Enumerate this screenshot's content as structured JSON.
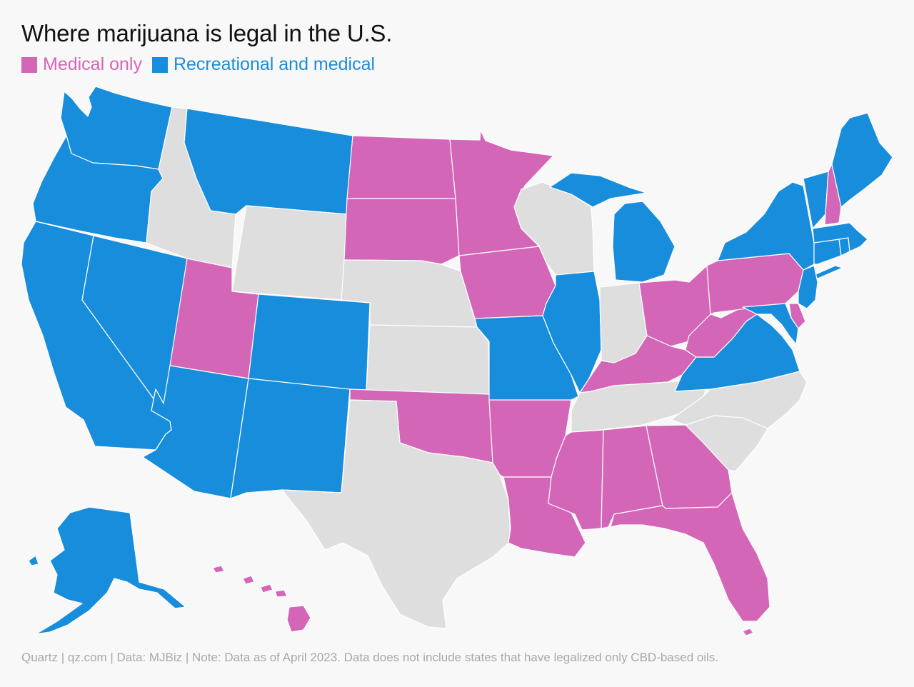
{
  "title": "Where marijuana is legal in the U.S.",
  "legend": [
    {
      "label": "Medical only",
      "status": "medical",
      "color": "#d466b8"
    },
    {
      "label": "Recreational and medical",
      "status": "recreational",
      "color": "#188ddc"
    }
  ],
  "colors": {
    "medical": "#d466b8",
    "recreational": "#188ddc",
    "none": "#dedede",
    "background": "#f8f8f8"
  },
  "states": {
    "WA": "recreational",
    "OR": "recreational",
    "CA": "recreational",
    "NV": "recreational",
    "ID": "none",
    "MT": "recreational",
    "WY": "none",
    "UT": "medical",
    "CO": "recreational",
    "AZ": "recreational",
    "NM": "recreational",
    "ND": "medical",
    "SD": "medical",
    "NE": "none",
    "KS": "none",
    "OK": "medical",
    "TX": "none",
    "MN": "medical",
    "IA": "medical",
    "MO": "recreational",
    "AR": "medical",
    "LA": "medical",
    "WI": "none",
    "IL": "recreational",
    "MI": "recreational",
    "IN": "none",
    "OH": "medical",
    "KY": "medical",
    "TN": "none",
    "MS": "medical",
    "AL": "medical",
    "GA": "medical",
    "FL": "medical",
    "SC": "none",
    "NC": "none",
    "VA": "recreational",
    "WV": "medical",
    "PA": "medical",
    "NY": "recreational",
    "VT": "recreational",
    "NH": "medical",
    "ME": "recreational",
    "MA": "recreational",
    "CT": "recreational",
    "RI": "recreational",
    "NJ": "recreational",
    "DE": "medical",
    "MD": "recreational",
    "AK": "recreational",
    "HI": "medical"
  },
  "footer": "Quartz | qz.com | Data: MJBiz | Note: Data as of April 2023. Data does not include states that have legalized only CBD-based oils."
}
